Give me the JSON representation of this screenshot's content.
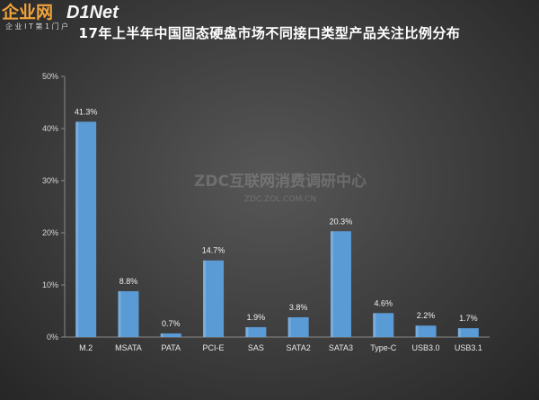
{
  "chart_data": {
    "type": "bar",
    "title": "17年上半年中国固态硬盘市场不同接口类型产品关注比例分布",
    "categories": [
      "M.2",
      "MSATA",
      "PATA",
      "PCI-E",
      "SAS",
      "SATA2",
      "SATA3",
      "Type-C",
      "USB3.0",
      "USB3.1"
    ],
    "values": [
      41.3,
      8.8,
      0.7,
      14.7,
      1.9,
      3.8,
      20.3,
      4.6,
      2.2,
      1.7
    ],
    "data_labels": [
      "41.3%",
      "8.8%",
      "0.7%",
      "14.7%",
      "1.9%",
      "3.8%",
      "20.3%",
      "4.6%",
      "2.2%",
      "1.7%"
    ],
    "ylim": [
      0,
      50
    ],
    "yticks": [
      0,
      10,
      20,
      30,
      40,
      50
    ],
    "ytick_labels": [
      "0%",
      "10%",
      "20%",
      "30%",
      "40%",
      "50%"
    ],
    "grid": false,
    "bar_color": "#5b9bd5"
  },
  "watermark": {
    "line1": "ZDC互联网消费调研中心",
    "line2": "ZDC.ZOL.COM.CN"
  },
  "logo": {
    "text_part1": "企业网",
    "text_part2": "D1Net",
    "subtitle": "企 业 I T 第 1 门 户"
  }
}
